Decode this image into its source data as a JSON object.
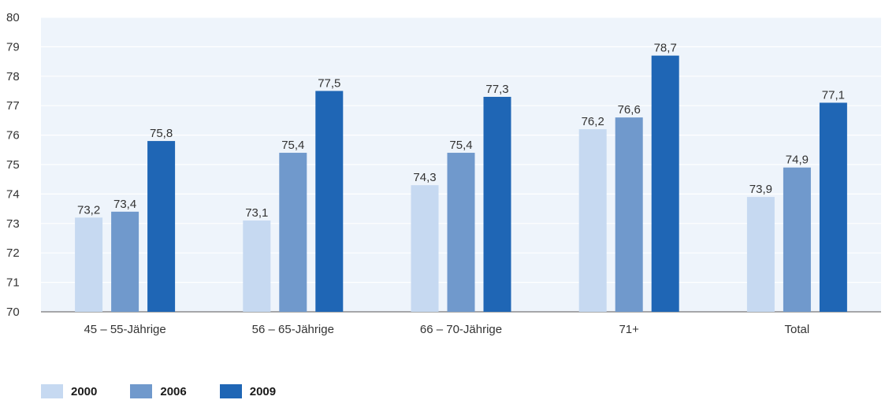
{
  "chart_data": {
    "type": "bar",
    "categories": [
      "45 – 55-Jährige",
      "56 – 65-Jährige",
      "66 – 70-Jährige",
      "71+",
      "Total"
    ],
    "series": [
      {
        "name": "2000",
        "color": "#c6d9f1",
        "values": [
          73.2,
          73.1,
          74.3,
          76.2,
          73.9
        ],
        "labels": [
          "73,2",
          "73,1",
          "74,3",
          "76,2",
          "73,9"
        ]
      },
      {
        "name": "2006",
        "color": "#7099cc",
        "values": [
          73.4,
          75.4,
          75.4,
          76.6,
          74.9
        ],
        "labels": [
          "73,4",
          "75,4",
          "75,4",
          "76,6",
          "74,9"
        ]
      },
      {
        "name": "2009",
        "color": "#1f66b5",
        "values": [
          75.8,
          77.5,
          77.3,
          78.7,
          77.1
        ],
        "labels": [
          "75,8",
          "77,5",
          "77,3",
          "78,7",
          "77,1"
        ]
      }
    ],
    "ylim": [
      70,
      80
    ],
    "yticks": [
      70,
      71,
      72,
      73,
      74,
      75,
      76,
      77,
      78,
      79,
      80
    ],
    "grid": true,
    "legend_position": "bottom-left",
    "plot_background": "#eef4fb",
    "grid_color": "#ffffff"
  }
}
